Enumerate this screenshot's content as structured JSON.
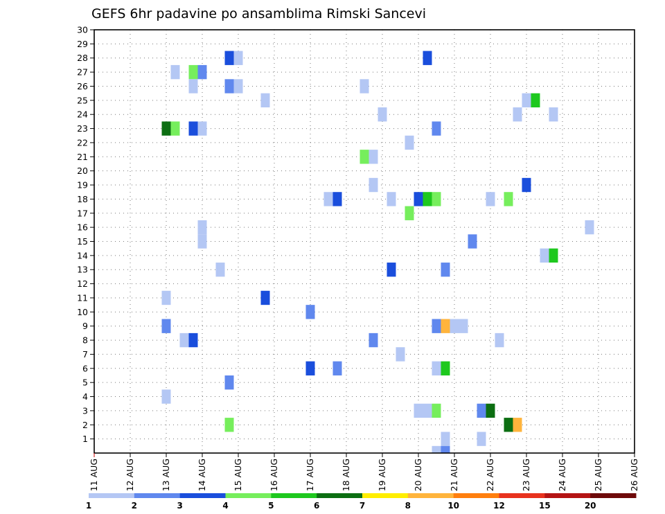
{
  "chart_data": {
    "type": "heatmap",
    "title": "GEFS 6hr padavine po ansamblima Rimski Sancevi",
    "xlabel": "",
    "ylabel": "",
    "x_tick_labels": [
      "11 AUG",
      "12 AUG",
      "13 AUG",
      "14 AUG",
      "15 AUG",
      "16 AUG",
      "17 AUG",
      "18 AUG",
      "19 AUG",
      "20 AUG",
      "21 AUG",
      "22 AUG",
      "23 AUG",
      "24 AUG",
      "25 AUG",
      "26 AUG"
    ],
    "x_range_days": [
      11,
      26
    ],
    "y_tick_labels": [
      1,
      2,
      3,
      4,
      5,
      6,
      7,
      8,
      9,
      10,
      11,
      12,
      13,
      14,
      15,
      16,
      17,
      18,
      19,
      20,
      21,
      22,
      23,
      24,
      25,
      26,
      27,
      28,
      29,
      30
    ],
    "y_range": [
      0,
      30
    ],
    "grid": true,
    "legend_position": "bottom",
    "legend_levels": [
      "1",
      "2",
      "3",
      "4",
      "5",
      "6",
      "7",
      "8",
      "10",
      "12",
      "15",
      "20"
    ],
    "legend_colors": [
      "#b4c7f4",
      "#6088ee",
      "#1a4edc",
      "#76ee5c",
      "#1ec81e",
      "#0c6e12",
      "#ffee00",
      "#ffb43c",
      "#ff7f0e",
      "#e8321e",
      "#b41414",
      "#6e0a0a"
    ],
    "cells": [
      {
        "member": 28,
        "day": 14.75,
        "level": 3
      },
      {
        "member": 28,
        "day": 15.0,
        "level": 1
      },
      {
        "member": 28,
        "day": 20.25,
        "level": 3
      },
      {
        "member": 27,
        "day": 13.25,
        "level": 1
      },
      {
        "member": 27,
        "day": 13.75,
        "level": 4
      },
      {
        "member": 27,
        "day": 14.0,
        "level": 2
      },
      {
        "member": 26,
        "day": 13.75,
        "level": 1
      },
      {
        "member": 26,
        "day": 14.75,
        "level": 2
      },
      {
        "member": 26,
        "day": 15.0,
        "level": 1
      },
      {
        "member": 26,
        "day": 18.5,
        "level": 1
      },
      {
        "member": 25,
        "day": 15.75,
        "level": 1
      },
      {
        "member": 25,
        "day": 23.0,
        "level": 1
      },
      {
        "member": 25,
        "day": 23.25,
        "level": 5
      },
      {
        "member": 24,
        "day": 19.0,
        "level": 1
      },
      {
        "member": 24,
        "day": 22.75,
        "level": 1
      },
      {
        "member": 24,
        "day": 23.75,
        "level": 1
      },
      {
        "member": 23,
        "day": 13.0,
        "level": 6
      },
      {
        "member": 23,
        "day": 13.25,
        "level": 4
      },
      {
        "member": 23,
        "day": 13.75,
        "level": 3
      },
      {
        "member": 23,
        "day": 14.0,
        "level": 1
      },
      {
        "member": 23,
        "day": 20.5,
        "level": 2
      },
      {
        "member": 22,
        "day": 19.75,
        "level": 1
      },
      {
        "member": 21,
        "day": 18.5,
        "level": 4
      },
      {
        "member": 21,
        "day": 18.75,
        "level": 1
      },
      {
        "member": 19,
        "day": 18.75,
        "level": 1
      },
      {
        "member": 19,
        "day": 23.0,
        "level": 3
      },
      {
        "member": 18,
        "day": 17.5,
        "level": 1
      },
      {
        "member": 18,
        "day": 17.75,
        "level": 3
      },
      {
        "member": 18,
        "day": 19.25,
        "level": 1
      },
      {
        "member": 18,
        "day": 20.0,
        "level": 3
      },
      {
        "member": 18,
        "day": 20.25,
        "level": 5
      },
      {
        "member": 18,
        "day": 20.5,
        "level": 4
      },
      {
        "member": 18,
        "day": 22.0,
        "level": 1
      },
      {
        "member": 18,
        "day": 22.5,
        "level": 4
      },
      {
        "member": 17,
        "day": 19.75,
        "level": 4
      },
      {
        "member": 16,
        "day": 24.75,
        "level": 1
      },
      {
        "member": 16,
        "day": 14.0,
        "level": 1
      },
      {
        "member": 15,
        "day": 21.5,
        "level": 2
      },
      {
        "member": 15,
        "day": 14.0,
        "level": 1
      },
      {
        "member": 14,
        "day": 23.5,
        "level": 1
      },
      {
        "member": 14,
        "day": 23.75,
        "level": 5
      },
      {
        "member": 13,
        "day": 14.5,
        "level": 1
      },
      {
        "member": 13,
        "day": 19.25,
        "level": 3
      },
      {
        "member": 13,
        "day": 20.75,
        "level": 2
      },
      {
        "member": 11,
        "day": 13.0,
        "level": 1
      },
      {
        "member": 11,
        "day": 15.75,
        "level": 3
      },
      {
        "member": 10,
        "day": 17.0,
        "level": 2
      },
      {
        "member": 9,
        "day": 13.0,
        "level": 2
      },
      {
        "member": 9,
        "day": 20.5,
        "level": 2
      },
      {
        "member": 9,
        "day": 20.75,
        "level": 8
      },
      {
        "member": 9,
        "day": 21.0,
        "level": 1
      },
      {
        "member": 9,
        "day": 21.25,
        "level": 1
      },
      {
        "member": 8,
        "day": 13.5,
        "level": 1
      },
      {
        "member": 8,
        "day": 13.75,
        "level": 3
      },
      {
        "member": 8,
        "day": 18.75,
        "level": 2
      },
      {
        "member": 8,
        "day": 22.25,
        "level": 1
      },
      {
        "member": 7,
        "day": 19.5,
        "level": 1
      },
      {
        "member": 6,
        "day": 17.0,
        "level": 3
      },
      {
        "member": 6,
        "day": 17.75,
        "level": 2
      },
      {
        "member": 6,
        "day": 20.5,
        "level": 1
      },
      {
        "member": 6,
        "day": 20.75,
        "level": 5
      },
      {
        "member": 5,
        "day": 14.75,
        "level": 2
      },
      {
        "member": 4,
        "day": 13.0,
        "level": 1
      },
      {
        "member": 3,
        "day": 20.0,
        "level": 1
      },
      {
        "member": 3,
        "day": 20.25,
        "level": 1
      },
      {
        "member": 3,
        "day": 20.5,
        "level": 4
      },
      {
        "member": 3,
        "day": 21.75,
        "level": 2
      },
      {
        "member": 3,
        "day": 22.0,
        "level": 6
      },
      {
        "member": 2,
        "day": 14.75,
        "level": 4
      },
      {
        "member": 2,
        "day": 22.5,
        "level": 6
      },
      {
        "member": 2,
        "day": 22.75,
        "level": 8
      },
      {
        "member": 1,
        "day": 20.75,
        "level": 1
      },
      {
        "member": 1,
        "day": 21.75,
        "level": 1
      },
      {
        "member": 0,
        "day": 20.5,
        "level": 1
      },
      {
        "member": 0,
        "day": 20.75,
        "level": 2
      }
    ]
  }
}
